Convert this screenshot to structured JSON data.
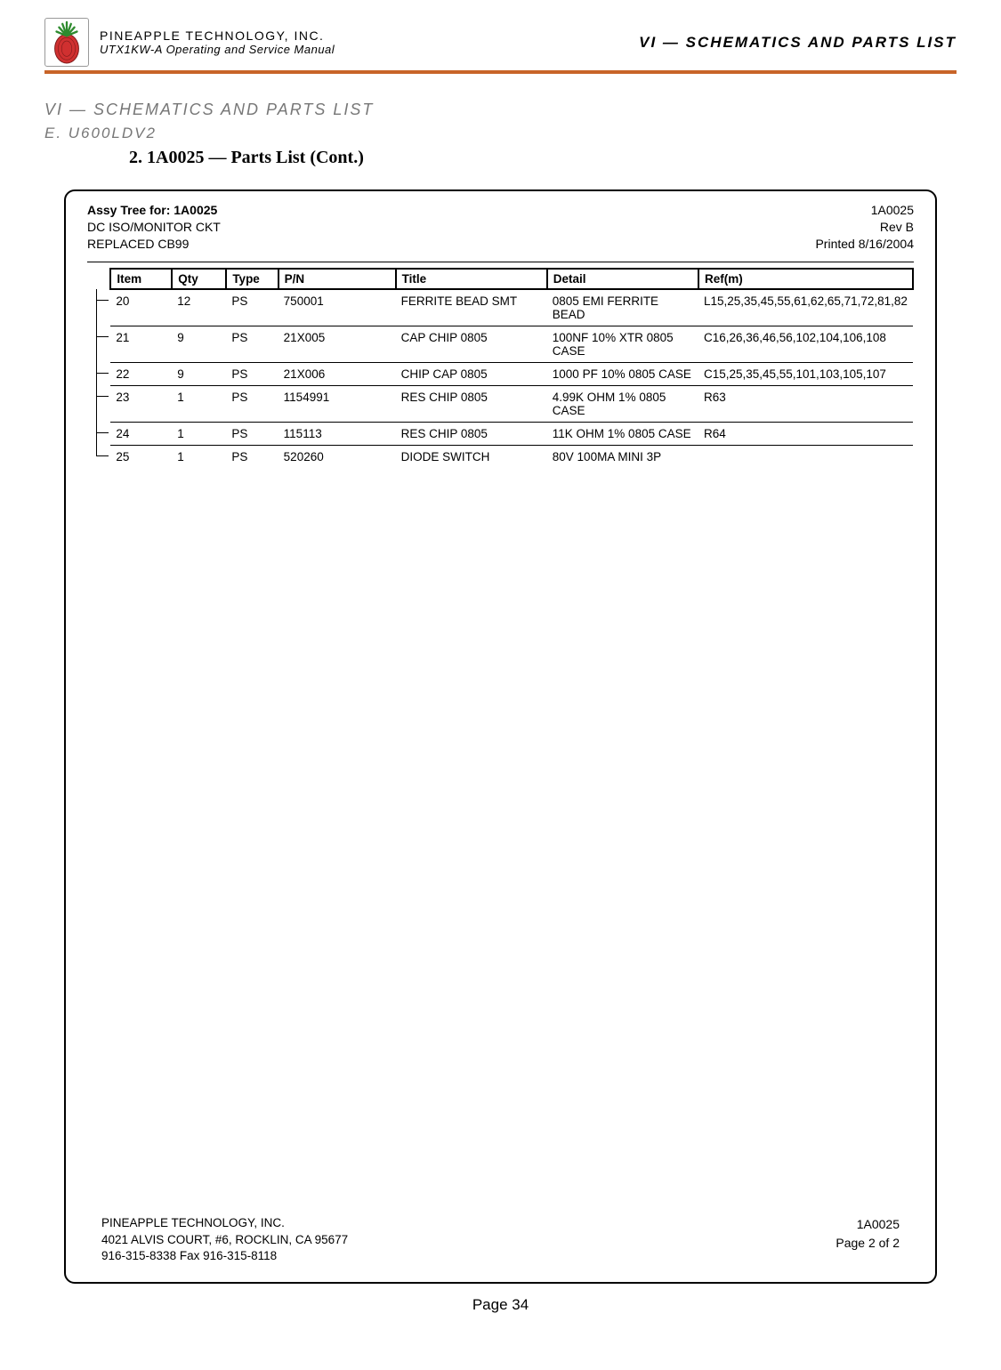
{
  "header": {
    "company": "PINEAPPLE TECHNOLOGY, INC.",
    "manual": "UTX1KW-A Operating and Service Manual",
    "section_right": "VI — SCHEMATICS AND PARTS LIST"
  },
  "section": {
    "hd1": "VI — SCHEMATICS AND PARTS LIST",
    "hd2": "E. U600LDV2",
    "hd3": "2.  1A0025 — Parts List (Cont.)"
  },
  "assy": {
    "tree_label": "Assy Tree for:  1A0025",
    "subtitle1": "DC ISO/MONITOR CKT",
    "subtitle2": "REPLACED CB99",
    "right_id": "1A0025",
    "rev": "Rev B",
    "printed": "Printed 8/16/2004"
  },
  "columns": {
    "item": "Item",
    "qty": "Qty",
    "type": "Type",
    "pn": "P/N",
    "title": "Title",
    "detail": "Detail",
    "ref": "Ref(m)"
  },
  "rows": [
    {
      "item": "20",
      "qty": "12",
      "type": "PS",
      "pn": "750001",
      "title": "FERRITE BEAD SMT",
      "detail": "0805 EMI FERRITE BEAD",
      "ref": "L15,25,35,45,55,61,62,65,71,72,81,82"
    },
    {
      "item": "21",
      "qty": "9",
      "type": "PS",
      "pn": "21X005",
      "title": "CAP CHIP 0805",
      "detail": "100NF 10%  XTR 0805 CASE",
      "ref": "C16,26,36,46,56,102,104,106,108"
    },
    {
      "item": "22",
      "qty": "9",
      "type": "PS",
      "pn": "21X006",
      "title": "CHIP CAP 0805",
      "detail": "1000 PF 10% 0805 CASE",
      "ref": "C15,25,35,45,55,101,103,105,107"
    },
    {
      "item": "23",
      "qty": "1",
      "type": "PS",
      "pn": "1154991",
      "title": "RES CHIP 0805",
      "detail": "4.99K OHM 1% 0805 CASE",
      "ref": "R63"
    },
    {
      "item": "24",
      "qty": "1",
      "type": "PS",
      "pn": "115113",
      "title": "RES CHIP 0805",
      "detail": "11K OHM 1% 0805 CASE",
      "ref": "R64"
    },
    {
      "item": "25",
      "qty": "1",
      "type": "PS",
      "pn": "520260",
      "title": "DIODE SWITCH",
      "detail": "80V 100MA MINI 3P",
      "ref": ""
    }
  ],
  "footer": {
    "company": "PINEAPPLE TECHNOLOGY, INC.",
    "address": "4021 ALVIS COURT, #6, ROCKLIN, CA 95677",
    "phone": "916-315-8338   Fax 916-315-8118",
    "right_id": "1A0025",
    "page_of": "Page 2 of   2"
  },
  "page_footer": "Page 34"
}
